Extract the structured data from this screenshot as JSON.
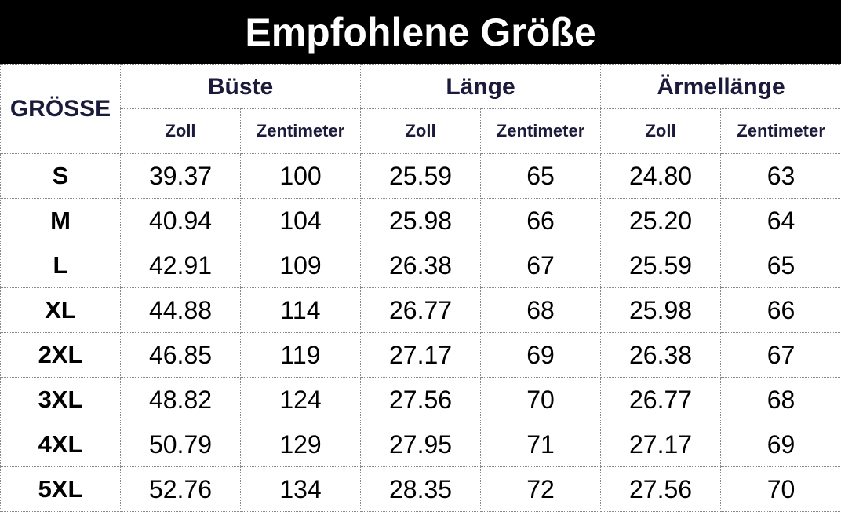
{
  "header": {
    "title": "Empfohlene Größe"
  },
  "table": {
    "corner": "GRÖSSE",
    "groups": [
      "Büste",
      "Länge",
      "Ärmellänge"
    ],
    "units": [
      "Zoll",
      "Zentimeter",
      "Zoll",
      "Zentimeter",
      "Zoll",
      "Zentimeter"
    ],
    "rows": [
      [
        "S",
        "39.37",
        "100",
        "25.59",
        "65",
        "24.80",
        "63"
      ],
      [
        "M",
        "40.94",
        "104",
        "25.98",
        "66",
        "25.20",
        "64"
      ],
      [
        "L",
        "42.91",
        "109",
        "26.38",
        "67",
        "25.59",
        "65"
      ],
      [
        "XL",
        "44.88",
        "114",
        "26.77",
        "68",
        "25.98",
        "66"
      ],
      [
        "2XL",
        "46.85",
        "119",
        "27.17",
        "69",
        "26.38",
        "67"
      ],
      [
        "3XL",
        "48.82",
        "124",
        "27.56",
        "70",
        "26.77",
        "68"
      ],
      [
        "4XL",
        "50.79",
        "129",
        "27.95",
        "71",
        "27.17",
        "69"
      ],
      [
        "5XL",
        "52.76",
        "134",
        "28.35",
        "72",
        "27.56",
        "70"
      ]
    ]
  }
}
